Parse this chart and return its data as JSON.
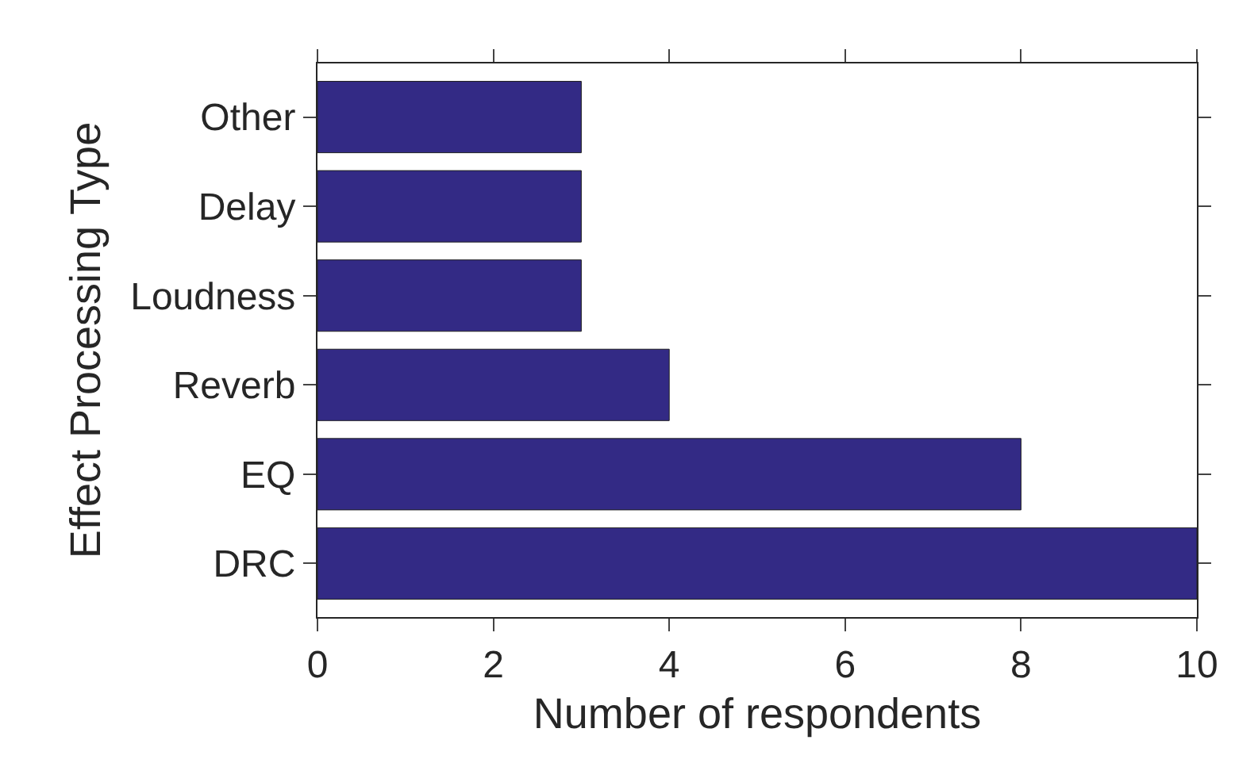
{
  "chart_data": {
    "type": "bar",
    "orientation": "horizontal",
    "xlabel": "Number of respondents",
    "ylabel": "Effect Processing Type",
    "categories": [
      "Other",
      "Delay",
      "Loudness",
      "Reverb",
      "EQ",
      "DRC"
    ],
    "values": [
      3,
      3,
      3,
      4,
      8,
      10
    ],
    "color": "#332a85",
    "xlim": [
      0,
      10
    ],
    "xticks": [
      0,
      2,
      4,
      6,
      8,
      10
    ],
    "grid": false
  }
}
